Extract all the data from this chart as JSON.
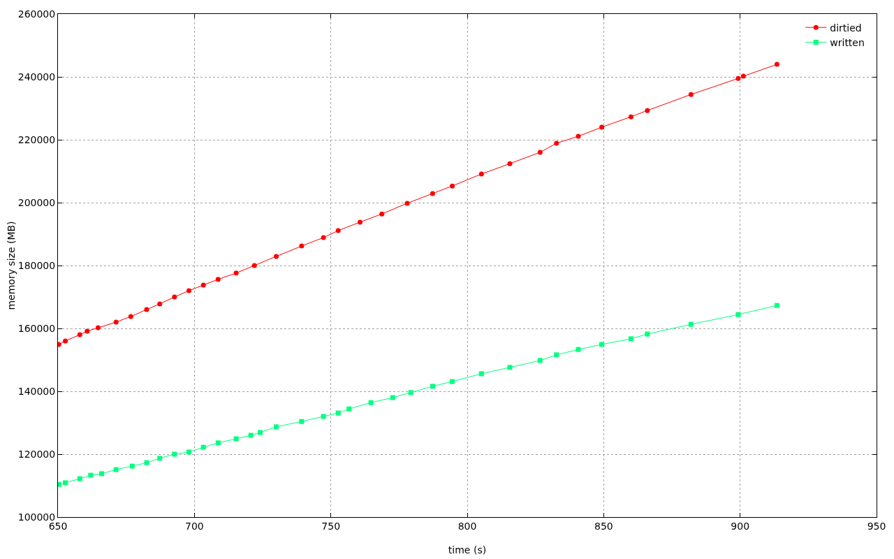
{
  "chart_data": {
    "type": "line",
    "xlabel": "time (s)",
    "ylabel": "memory size (MB)",
    "xlim": [
      650,
      950
    ],
    "xticks": [
      650,
      700,
      750,
      800,
      850,
      900,
      950
    ],
    "ylim": [
      100000,
      260000
    ],
    "yticks": [
      100000,
      120000,
      140000,
      160000,
      180000,
      200000,
      220000,
      240000,
      260000
    ],
    "grid": true,
    "legend": "top right",
    "line_style": "solid",
    "series": [
      {
        "name": "dirtied",
        "color": "#ff0000",
        "marker": "circle",
        "x": [
          650.3,
          652.7,
          658,
          660.7,
          664.7,
          671.3,
          676.7,
          682.5,
          687.3,
          692.7,
          698,
          703.3,
          708.7,
          715.3,
          722,
          730,
          739.3,
          747.3,
          752.7,
          760.7,
          768.7,
          778,
          787.3,
          794.5,
          805.2,
          815.6,
          826.7,
          832.7,
          840.7,
          849.3,
          860,
          866,
          882,
          899.3,
          901.2,
          913.5
        ],
        "values": [
          154900,
          156000,
          158000,
          159100,
          160200,
          162000,
          163800,
          166000,
          167800,
          170000,
          172000,
          173800,
          175600,
          177600,
          180000,
          182900,
          186200,
          188900,
          191100,
          193800,
          196400,
          199800,
          202900,
          205300,
          209100,
          212400,
          216000,
          218900,
          221100,
          224000,
          227300,
          229300,
          234400,
          239500,
          240200,
          244000
        ]
      },
      {
        "name": "written",
        "color": "#00ff7f",
        "marker": "square",
        "x": [
          650.3,
          652.7,
          658,
          662,
          666,
          671.3,
          677.2,
          682.5,
          687.3,
          692.7,
          698,
          703.3,
          708.7,
          715.3,
          720.7,
          724.1,
          730,
          739.3,
          747.3,
          752.7,
          756.7,
          764.7,
          772.7,
          779.3,
          787.3,
          794.5,
          805.2,
          815.6,
          826.7,
          832.7,
          840.7,
          849.3,
          860,
          866,
          882,
          899.3,
          913.5
        ],
        "values": [
          110400,
          110900,
          112200,
          113300,
          113800,
          115100,
          116200,
          117300,
          118700,
          120000,
          120700,
          122200,
          123600,
          124900,
          126000,
          126900,
          128700,
          130400,
          132000,
          133100,
          134400,
          136400,
          138000,
          139600,
          141600,
          143100,
          145600,
          147600,
          149800,
          151600,
          153300,
          154900,
          156700,
          158200,
          161300,
          164400,
          167300
        ]
      }
    ]
  }
}
